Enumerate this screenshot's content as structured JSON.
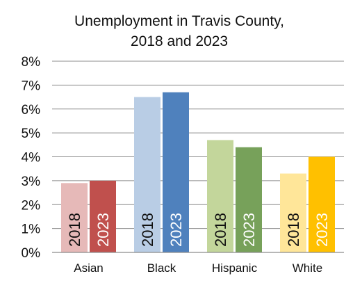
{
  "chart_data": {
    "type": "bar",
    "title": [
      "Unemployment in Travis County,",
      "2018 and 2023"
    ],
    "categories": [
      "Asian",
      "Black",
      "Hispanic",
      "White"
    ],
    "series_years": [
      "2018",
      "2023"
    ],
    "values": [
      [
        2.9,
        3.0
      ],
      [
        6.5,
        6.7
      ],
      [
        4.7,
        4.4
      ],
      [
        3.3,
        4.0
      ]
    ],
    "colors": [
      [
        "#e6b9b8",
        "#c0504d"
      ],
      [
        "#b9cde5",
        "#4f81bd"
      ],
      [
        "#c3d69b",
        "#77a15a"
      ],
      [
        "#ffe699",
        "#ffc000"
      ]
    ],
    "label_colors": [
      [
        "#111111",
        "#ffffff"
      ],
      [
        "#111111",
        "#ffffff"
      ],
      [
        "#111111",
        "#ffffff"
      ],
      [
        "#111111",
        "#ffffff"
      ]
    ],
    "yticks": [
      "0%",
      "1%",
      "2%",
      "3%",
      "4%",
      "5%",
      "6%",
      "7%",
      "8%"
    ],
    "ylim": [
      0,
      8
    ],
    "ylabel": "",
    "xlabel": "",
    "grid": true,
    "legend": "none"
  }
}
